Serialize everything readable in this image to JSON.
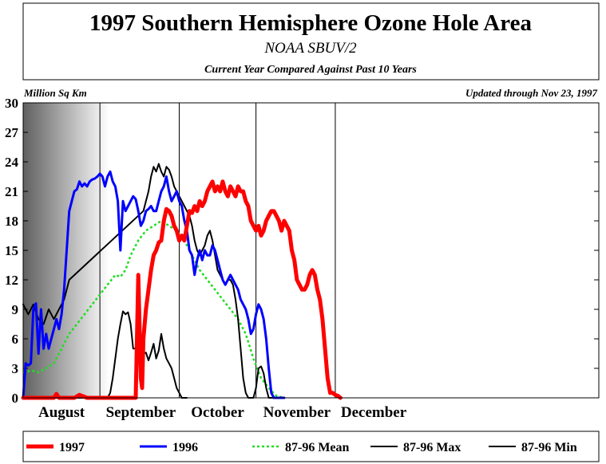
{
  "chart_data": {
    "type": "line",
    "title": "1997 Southern Hemisphere Ozone Hole Area",
    "subtitle": "NOAA SBUV/2",
    "subsubtitle": "Current Year Compared Against Past 10 Years",
    "ylabel": "Million Sq Km",
    "updated": "Updated through Nov 23, 1997",
    "ylim": [
      0,
      30
    ],
    "xlim": [
      0,
      225
    ],
    "yticks": [
      0,
      3,
      6,
      9,
      12,
      15,
      18,
      21,
      24,
      27,
      30
    ],
    "months": [
      {
        "label": "August",
        "pos": 15
      },
      {
        "label": "September",
        "pos": 46
      },
      {
        "label": "October",
        "pos": 76
      },
      {
        "label": "November",
        "pos": 107
      },
      {
        "label": "December",
        "pos": 137
      }
    ],
    "month_boundaries": [
      30,
      61,
      91,
      122
    ],
    "series": [
      {
        "name": "1997",
        "color": "#ff0000",
        "width": 5,
        "dash": "",
        "points": [
          [
            0,
            0
          ],
          [
            12,
            0
          ],
          [
            13,
            0.4
          ],
          [
            14,
            0
          ],
          [
            17,
            0
          ],
          [
            20,
            0
          ],
          [
            22,
            0.3
          ],
          [
            25,
            0
          ],
          [
            44,
            0
          ],
          [
            45,
            12.5
          ],
          [
            46,
            2
          ],
          [
            46.5,
            1
          ],
          [
            47,
            6
          ],
          [
            48,
            9
          ],
          [
            49,
            11
          ],
          [
            50,
            13
          ],
          [
            51,
            14.5
          ],
          [
            52,
            15
          ],
          [
            53,
            15.8
          ],
          [
            54,
            16
          ],
          [
            55,
            18
          ],
          [
            56,
            19.2
          ],
          [
            57,
            19
          ],
          [
            58,
            18.5
          ],
          [
            59,
            17.5
          ],
          [
            60,
            17
          ],
          [
            61,
            16
          ],
          [
            62,
            16.5
          ],
          [
            63,
            16
          ],
          [
            64,
            17.5
          ],
          [
            65,
            19
          ],
          [
            66,
            18.8
          ],
          [
            67,
            19.5
          ],
          [
            68,
            19
          ],
          [
            69,
            20
          ],
          [
            70,
            19.5
          ],
          [
            71,
            20
          ],
          [
            72,
            21
          ],
          [
            73,
            21.5
          ],
          [
            74,
            22
          ],
          [
            75,
            21
          ],
          [
            76,
            21.5
          ],
          [
            77,
            21
          ],
          [
            78,
            22
          ],
          [
            79,
            21
          ],
          [
            80,
            20.5
          ],
          [
            81,
            21.5
          ],
          [
            82,
            21
          ],
          [
            83,
            20.5
          ],
          [
            84,
            21.5
          ],
          [
            85,
            21
          ],
          [
            86,
            21
          ],
          [
            87,
            20
          ],
          [
            88,
            19.5
          ],
          [
            89,
            18
          ],
          [
            90,
            17.5
          ],
          [
            91,
            17
          ],
          [
            92,
            17.5
          ],
          [
            93,
            16.5
          ],
          [
            94,
            17
          ],
          [
            95,
            18
          ],
          [
            96,
            18.5
          ],
          [
            97,
            19
          ],
          [
            98,
            19
          ],
          [
            99,
            18.5
          ],
          [
            100,
            18
          ],
          [
            101,
            17
          ],
          [
            102,
            18
          ],
          [
            103,
            17.5
          ],
          [
            104,
            17
          ],
          [
            105,
            15
          ],
          [
            106,
            14
          ],
          [
            107,
            12
          ],
          [
            108,
            11.5
          ],
          [
            109,
            11
          ],
          [
            110,
            11
          ],
          [
            111,
            11.5
          ],
          [
            112,
            12.5
          ],
          [
            113,
            13
          ],
          [
            114,
            12.5
          ],
          [
            115,
            11
          ],
          [
            116,
            10
          ],
          [
            117,
            8
          ],
          [
            118,
            5
          ],
          [
            119,
            2
          ],
          [
            120,
            0.5
          ],
          [
            121,
            0.5
          ],
          [
            122,
            0.3
          ],
          [
            123,
            0.2
          ],
          [
            124,
            0
          ]
        ]
      },
      {
        "name": "1996",
        "color": "#0000ff",
        "width": 3,
        "dash": "",
        "points": [
          [
            0,
            0
          ],
          [
            1,
            3.5
          ],
          [
            2,
            3.3
          ],
          [
            3,
            3.5
          ],
          [
            4,
            9
          ],
          [
            5,
            9.6
          ],
          [
            6,
            4.5
          ],
          [
            7,
            9
          ],
          [
            8,
            5
          ],
          [
            9,
            6.5
          ],
          [
            10,
            5
          ],
          [
            11,
            6
          ],
          [
            12,
            7
          ],
          [
            13,
            8
          ],
          [
            14,
            7
          ],
          [
            15,
            8.5
          ],
          [
            16,
            11
          ],
          [
            17,
            15
          ],
          [
            18,
            19
          ],
          [
            19,
            20
          ],
          [
            20,
            21
          ],
          [
            21,
            21.2
          ],
          [
            22,
            22
          ],
          [
            23,
            21.5
          ],
          [
            24,
            21.8
          ],
          [
            25,
            21.5
          ],
          [
            26,
            22
          ],
          [
            27,
            22.2
          ],
          [
            28,
            22.3
          ],
          [
            29,
            22.5
          ],
          [
            30,
            22.8
          ],
          [
            31,
            22.5
          ],
          [
            32,
            21.5
          ],
          [
            33,
            22.5
          ],
          [
            34,
            23
          ],
          [
            35,
            22
          ],
          [
            36,
            21.5
          ],
          [
            37,
            20
          ],
          [
            38,
            15
          ],
          [
            39,
            20
          ],
          [
            40,
            19
          ],
          [
            41,
            19.5
          ],
          [
            42,
            20
          ],
          [
            43,
            20.5
          ],
          [
            44,
            20.2
          ],
          [
            45,
            19
          ],
          [
            46,
            17.5
          ],
          [
            47,
            18
          ],
          [
            48,
            19
          ],
          [
            49,
            19.2
          ],
          [
            50,
            19.5
          ],
          [
            51,
            19
          ],
          [
            52,
            19
          ],
          [
            53,
            20
          ],
          [
            54,
            21
          ],
          [
            55,
            21.5
          ],
          [
            56,
            22.5
          ],
          [
            57,
            21
          ],
          [
            58,
            20
          ],
          [
            59,
            20.5
          ],
          [
            60,
            21
          ],
          [
            61,
            20
          ],
          [
            62,
            19.5
          ],
          [
            63,
            18
          ],
          [
            64,
            17
          ],
          [
            65,
            15
          ],
          [
            66,
            14.5
          ],
          [
            67,
            12.5
          ],
          [
            68,
            14
          ],
          [
            69,
            15
          ],
          [
            70,
            14
          ],
          [
            71,
            15
          ],
          [
            72,
            14.5
          ],
          [
            73,
            14.5
          ],
          [
            74,
            15.5
          ],
          [
            75,
            15
          ],
          [
            76,
            14
          ],
          [
            77,
            13
          ],
          [
            78,
            12
          ],
          [
            79,
            11.5
          ],
          [
            80,
            12
          ],
          [
            81,
            12.5
          ],
          [
            82,
            12
          ],
          [
            83,
            11.5
          ],
          [
            84,
            11
          ],
          [
            85,
            10
          ],
          [
            86,
            9.5
          ],
          [
            87,
            9
          ],
          [
            88,
            8
          ],
          [
            89,
            6.5
          ],
          [
            90,
            7
          ],
          [
            91,
            8.5
          ],
          [
            92,
            9.5
          ],
          [
            93,
            9
          ],
          [
            94,
            8
          ],
          [
            95,
            6
          ],
          [
            96,
            3
          ],
          [
            97,
            0.5
          ],
          [
            98,
            0
          ],
          [
            99,
            0
          ],
          [
            102,
            0
          ]
        ]
      },
      {
        "name": "87-96 Mean",
        "color": "#22dd22",
        "width": 2.5,
        "dash": "3,3",
        "points": [
          [
            0,
            2.5
          ],
          [
            3,
            2.8
          ],
          [
            6,
            2.6
          ],
          [
            9,
            3
          ],
          [
            12,
            3.5
          ],
          [
            15,
            5
          ],
          [
            18,
            6.5
          ],
          [
            21,
            7.5
          ],
          [
            24,
            8.5
          ],
          [
            27,
            9.5
          ],
          [
            30,
            10.5
          ],
          [
            33,
            11.5
          ],
          [
            36,
            12.5
          ],
          [
            38,
            12.3
          ],
          [
            40,
            13
          ],
          [
            42,
            14.5
          ],
          [
            45,
            16
          ],
          [
            48,
            17
          ],
          [
            51,
            17.5
          ],
          [
            54,
            18
          ],
          [
            57,
            17.5
          ],
          [
            60,
            17
          ],
          [
            63,
            16
          ],
          [
            66,
            14.5
          ],
          [
            69,
            13
          ],
          [
            72,
            12
          ],
          [
            75,
            11
          ],
          [
            78,
            10
          ],
          [
            81,
            9
          ],
          [
            84,
            8
          ],
          [
            87,
            6.5
          ],
          [
            90,
            4
          ],
          [
            93,
            2
          ],
          [
            96,
            1
          ],
          [
            99,
            0.2
          ],
          [
            102,
            0
          ]
        ]
      },
      {
        "name": "87-96 Max",
        "color": "#000000",
        "width": 2,
        "dash": "",
        "points": [
          [
            0,
            9.5
          ],
          [
            2,
            8.5
          ],
          [
            4,
            9.5
          ],
          [
            6,
            8
          ],
          [
            8,
            7.5
          ],
          [
            10,
            9
          ],
          [
            12,
            8
          ],
          [
            14,
            9
          ],
          [
            16,
            10
          ],
          [
            18,
            12
          ],
          [
            47,
            19
          ],
          [
            48,
            20
          ],
          [
            49,
            21
          ],
          [
            50,
            22.5
          ],
          [
            51,
            23.5
          ],
          [
            52,
            23
          ],
          [
            53,
            23.8
          ],
          [
            54,
            23
          ],
          [
            55,
            22.5
          ],
          [
            56,
            23.5
          ],
          [
            57,
            23.2
          ],
          [
            58,
            22.5
          ],
          [
            59,
            21.5
          ],
          [
            60,
            21
          ],
          [
            61,
            20.5
          ],
          [
            62,
            20
          ],
          [
            63,
            19.5
          ],
          [
            64,
            19
          ],
          [
            65,
            18.5
          ],
          [
            66,
            17.5
          ],
          [
            67,
            16
          ],
          [
            68,
            15
          ],
          [
            69,
            14.5
          ],
          [
            70,
            15
          ],
          [
            71,
            15.5
          ],
          [
            72,
            16.5
          ],
          [
            73,
            17
          ],
          [
            74,
            16
          ],
          [
            75,
            14.5
          ],
          [
            76,
            13
          ],
          [
            77,
            12.5
          ],
          [
            78,
            12
          ],
          [
            79,
            11.5
          ],
          [
            80,
            12
          ],
          [
            81,
            12
          ],
          [
            82,
            11.5
          ],
          [
            83,
            10
          ],
          [
            84,
            8
          ],
          [
            85,
            5
          ],
          [
            86,
            2
          ],
          [
            87,
            0.5
          ],
          [
            88,
            0
          ],
          [
            89,
            0
          ],
          [
            90,
            0
          ],
          [
            91,
            1
          ],
          [
            92,
            3
          ],
          [
            93,
            3.2
          ],
          [
            94,
            2.5
          ],
          [
            95,
            1
          ],
          [
            96,
            0
          ],
          [
            102,
            0
          ]
        ]
      },
      {
        "name": "87-96 Min",
        "color": "#000000",
        "width": 2,
        "dash": "",
        "points": [
          [
            0,
            0
          ],
          [
            33,
            0
          ],
          [
            34,
            0.5
          ],
          [
            35,
            2
          ],
          [
            36,
            4
          ],
          [
            37,
            6
          ],
          [
            38,
            7.5
          ],
          [
            39,
            8.8
          ],
          [
            40,
            8.5
          ],
          [
            41,
            8.7
          ],
          [
            42,
            7.5
          ],
          [
            43,
            5
          ],
          [
            44,
            5
          ],
          [
            45,
            4.5
          ],
          [
            46,
            4.3
          ],
          [
            47,
            4.5
          ],
          [
            48,
            4.6
          ],
          [
            49,
            3.8
          ],
          [
            50,
            4.6
          ],
          [
            51,
            5.5
          ],
          [
            52,
            4
          ],
          [
            53,
            4.8
          ],
          [
            54,
            6.5
          ],
          [
            55,
            5
          ],
          [
            56,
            4
          ],
          [
            57,
            3.5
          ],
          [
            58,
            3
          ],
          [
            59,
            2
          ],
          [
            60,
            1
          ],
          [
            61,
            0.5
          ],
          [
            62,
            0
          ],
          [
            63,
            0
          ],
          [
            64,
            0
          ]
        ]
      }
    ]
  }
}
